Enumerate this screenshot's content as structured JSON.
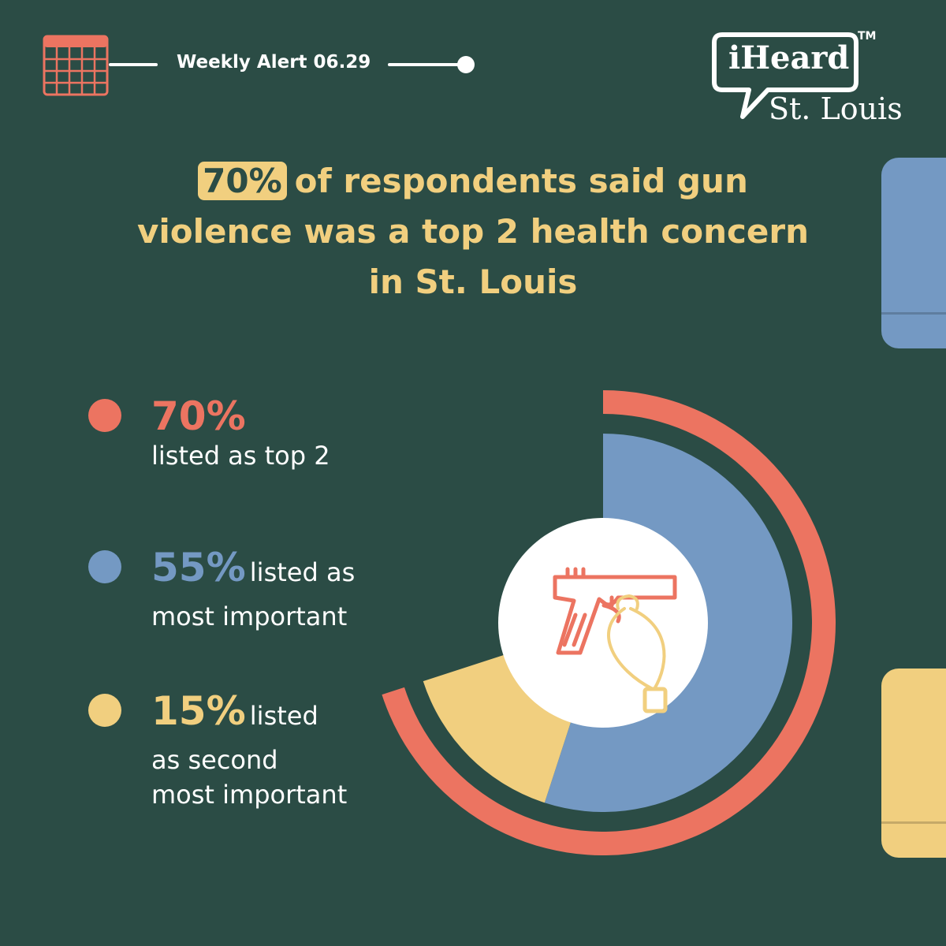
{
  "header": {
    "alert_label": "Weekly Alert 06.29",
    "logo_name": "iHeard",
    "logo_city": "St. Louis",
    "logo_tm": "TM"
  },
  "headline": {
    "highlight": "70%",
    "text": "of respondents said gun violence was a top 2 health concern in St. Louis"
  },
  "legend": [
    {
      "value": "70%",
      "text": "listed as top 2",
      "color": "#ec7461"
    },
    {
      "value": "55%",
      "text_inline": "listed as",
      "text": "most important",
      "color": "#7499c3"
    },
    {
      "value": "15%",
      "text_inline": "listed",
      "text": "as second",
      "text2": "most important",
      "color": "#f1cf7f"
    }
  ],
  "chart_data": {
    "type": "pie",
    "title": "",
    "series": [
      {
        "name": "listed as top 2",
        "value": 70,
        "color": "#ec7461",
        "ring": "outer"
      },
      {
        "name": "listed as most important",
        "value": 55,
        "color": "#7499c3",
        "ring": "inner"
      },
      {
        "name": "listed as second most important",
        "value": 15,
        "color": "#f1cf7f",
        "ring": "inner"
      }
    ],
    "center_icon": "gun-with-tag-icon",
    "start_angle": "12 o'clock",
    "direction": "clockwise"
  },
  "colors": {
    "background": "#2b4c45",
    "coral": "#ec7461",
    "blue": "#7499c3",
    "yellow": "#f1cf7f",
    "white": "#ffffff"
  },
  "icons": {
    "calendar": "calendar-icon",
    "center": "gun-with-tag-icon"
  }
}
